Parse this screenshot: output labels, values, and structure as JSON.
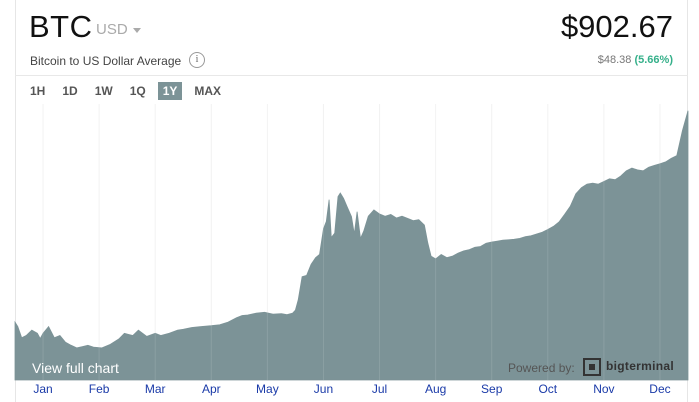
{
  "header": {
    "ticker": "BTC",
    "currency": "USD",
    "subtitle": "Bitcoin to US Dollar Average",
    "info_icon": "i",
    "price": "$902.67",
    "change_value": "$48.38",
    "change_pct": "(5.66%)"
  },
  "ranges": [
    "1H",
    "1D",
    "1W",
    "1Q",
    "1Y",
    "MAX"
  ],
  "active_range": "1Y",
  "footer": {
    "view_full_chart": "View full chart",
    "powered_by": "Powered by:",
    "brand": "bigterminal"
  },
  "colors": {
    "area": "#7c9397",
    "accent_green": "#35b08a",
    "month_label": "#1a3aa8"
  },
  "chart_data": {
    "type": "area",
    "title": "",
    "xlabel": "",
    "ylabel": "",
    "x_labels": [
      "Jan",
      "Feb",
      "Mar",
      "Apr",
      "May",
      "Jun",
      "Jul",
      "Aug",
      "Sep",
      "Oct",
      "Nov",
      "Dec"
    ],
    "x_range": [
      0,
      12
    ],
    "ylim": [
      300,
      920
    ],
    "grid": "vertical month lines",
    "series": [
      {
        "points": [
          [
            0.0,
            430
          ],
          [
            0.05,
            420
          ],
          [
            0.12,
            395
          ],
          [
            0.2,
            400
          ],
          [
            0.3,
            412
          ],
          [
            0.4,
            405
          ],
          [
            0.45,
            393
          ],
          [
            0.5,
            405
          ],
          [
            0.6,
            420
          ],
          [
            0.7,
            395
          ],
          [
            0.8,
            400
          ],
          [
            0.9,
            385
          ],
          [
            1.0,
            378
          ],
          [
            1.1,
            372
          ],
          [
            1.2,
            375
          ],
          [
            1.3,
            378
          ],
          [
            1.4,
            374
          ],
          [
            1.55,
            372
          ],
          [
            1.7,
            380
          ],
          [
            1.85,
            392
          ],
          [
            1.95,
            405
          ],
          [
            2.1,
            400
          ],
          [
            2.2,
            412
          ],
          [
            2.35,
            398
          ],
          [
            2.5,
            405
          ],
          [
            2.6,
            400
          ],
          [
            2.75,
            405
          ],
          [
            2.9,
            412
          ],
          [
            3.0,
            414
          ],
          [
            3.15,
            418
          ],
          [
            3.3,
            420
          ],
          [
            3.5,
            422
          ],
          [
            3.65,
            424
          ],
          [
            3.8,
            430
          ],
          [
            3.95,
            440
          ],
          [
            4.05,
            445
          ],
          [
            4.15,
            446
          ],
          [
            4.3,
            450
          ],
          [
            4.45,
            452
          ],
          [
            4.6,
            448
          ],
          [
            4.75,
            449
          ],
          [
            4.85,
            447
          ],
          [
            4.95,
            450
          ],
          [
            5.0,
            457
          ],
          [
            5.05,
            480
          ],
          [
            5.12,
            532
          ],
          [
            5.2,
            535
          ],
          [
            5.28,
            560
          ],
          [
            5.36,
            575
          ],
          [
            5.43,
            582
          ],
          [
            5.5,
            640
          ],
          [
            5.55,
            656
          ],
          [
            5.6,
            705
          ],
          [
            5.64,
            620
          ],
          [
            5.7,
            630
          ],
          [
            5.76,
            712
          ],
          [
            5.8,
            720
          ],
          [
            5.86,
            708
          ],
          [
            5.92,
            690
          ],
          [
            6.0,
            667
          ],
          [
            6.05,
            628
          ],
          [
            6.1,
            678
          ],
          [
            6.16,
            618
          ],
          [
            6.22,
            635
          ],
          [
            6.3,
            668
          ],
          [
            6.4,
            682
          ],
          [
            6.5,
            673
          ],
          [
            6.6,
            668
          ],
          [
            6.7,
            672
          ],
          [
            6.8,
            664
          ],
          [
            6.9,
            668
          ],
          [
            7.0,
            663
          ],
          [
            7.1,
            658
          ],
          [
            7.2,
            660
          ],
          [
            7.3,
            648
          ],
          [
            7.36,
            608
          ],
          [
            7.42,
            578
          ],
          [
            7.5,
            572
          ],
          [
            7.6,
            582
          ],
          [
            7.7,
            575
          ],
          [
            7.8,
            578
          ],
          [
            7.9,
            585
          ],
          [
            8.0,
            590
          ],
          [
            8.1,
            593
          ],
          [
            8.2,
            598
          ],
          [
            8.3,
            600
          ],
          [
            8.4,
            607
          ],
          [
            8.5,
            610
          ],
          [
            8.6,
            612
          ],
          [
            8.7,
            614
          ],
          [
            8.8,
            615
          ],
          [
            8.9,
            616
          ],
          [
            9.0,
            618
          ],
          [
            9.1,
            622
          ],
          [
            9.2,
            624
          ],
          [
            9.3,
            628
          ],
          [
            9.4,
            632
          ],
          [
            9.5,
            638
          ],
          [
            9.6,
            645
          ],
          [
            9.7,
            655
          ],
          [
            9.8,
            672
          ],
          [
            9.9,
            690
          ],
          [
            10.0,
            718
          ],
          [
            10.1,
            732
          ],
          [
            10.2,
            740
          ],
          [
            10.3,
            742
          ],
          [
            10.4,
            740
          ],
          [
            10.5,
            746
          ],
          [
            10.6,
            752
          ],
          [
            10.7,
            750
          ],
          [
            10.8,
            758
          ],
          [
            10.9,
            770
          ],
          [
            11.0,
            776
          ],
          [
            11.1,
            772
          ],
          [
            11.2,
            770
          ],
          [
            11.3,
            778
          ],
          [
            11.4,
            782
          ],
          [
            11.5,
            786
          ],
          [
            11.6,
            790
          ],
          [
            11.7,
            798
          ],
          [
            11.8,
            804
          ],
          [
            11.9,
            860
          ],
          [
            12.0,
            905
          ]
        ]
      }
    ]
  }
}
